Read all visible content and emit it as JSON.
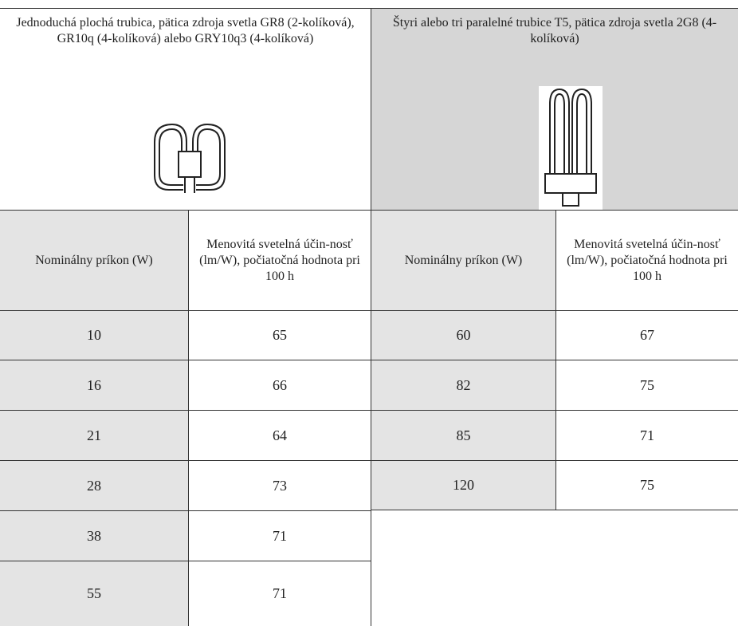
{
  "header": {
    "left": "Jednoduchá plochá trubica, pätica zdroja svetla GR8 (2-kolíková), GR10q (4-kolíková) alebo GRY10q3 (4-kolíková)",
    "right": "Štyri alebo tri paralelné trubice T5, pätica zdroja svetla 2G8 (4-kolíková)"
  },
  "table": {
    "columns": [
      "Nominálny príkon (W)",
      "Menovitá svetelná účin-nosť (lm/W), počiatočná hodnota pri 100 h",
      "Nominálny príkon (W)",
      "Menovitá svetelná účin-nosť (lm/W), počiatočná hodnota pri 100 h"
    ],
    "left_rows": [
      [
        10,
        65
      ],
      [
        16,
        66
      ],
      [
        21,
        64
      ],
      [
        28,
        73
      ],
      [
        38,
        71
      ],
      [
        55,
        71
      ]
    ],
    "right_rows": [
      [
        60,
        67
      ],
      [
        82,
        75
      ],
      [
        85,
        71
      ],
      [
        120,
        75
      ]
    ]
  }
}
